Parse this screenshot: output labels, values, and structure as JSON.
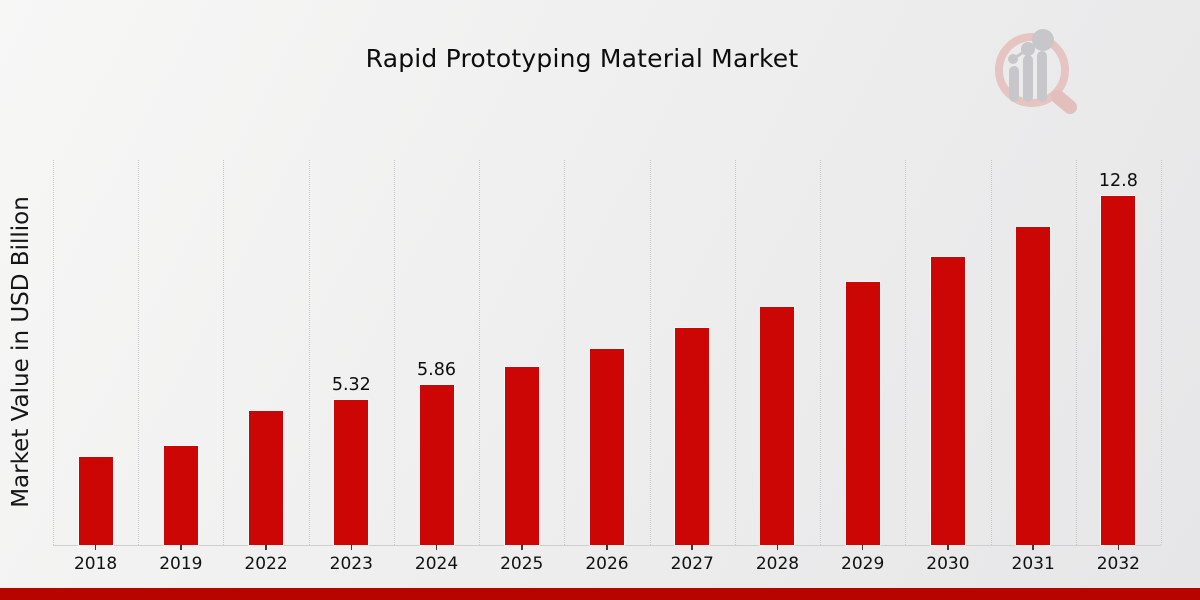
{
  "chart_data": {
    "type": "bar",
    "title": "Rapid Prototyping Material Market",
    "xlabel": "",
    "ylabel": "Market Value in USD Billion",
    "categories": [
      "2018",
      "2019",
      "2022",
      "2023",
      "2024",
      "2025",
      "2026",
      "2027",
      "2028",
      "2029",
      "2030",
      "2031",
      "2032"
    ],
    "values": [
      3.24,
      3.63,
      4.89,
      5.32,
      5.86,
      6.52,
      7.19,
      7.96,
      8.73,
      9.63,
      10.55,
      11.65,
      12.8
    ],
    "data_labels": {
      "2023": "5.32",
      "2024": "5.86",
      "2032": "12.8"
    },
    "bar_color": "#cc0605",
    "ylim": [
      0,
      14.1
    ],
    "grid": "vertical-dotted-category-separators",
    "legend": "none"
  },
  "footer": {
    "stripe_color": "#b80400"
  },
  "watermark": {
    "icon": "market-research-future-logo",
    "ring_color": "#e5c4c2",
    "bars_color": "#c7c7cb"
  }
}
